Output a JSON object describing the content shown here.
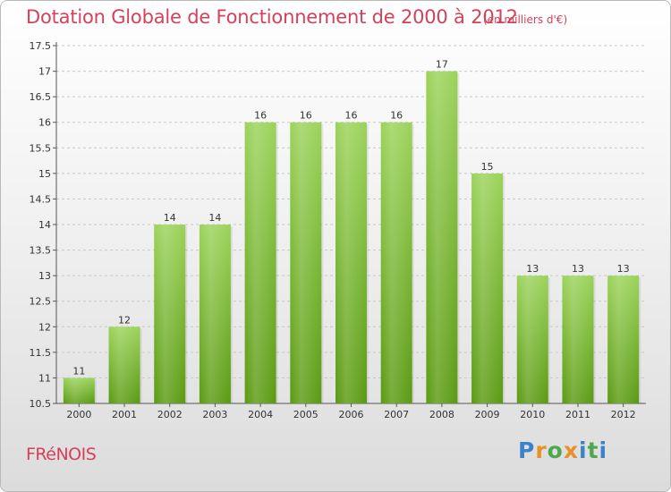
{
  "title": "Dotation Globale de Fonctionnement de 2000 à 2012",
  "unit_label": "(en milliers d'€)",
  "place_name": "FRéNOIS",
  "logo": {
    "letters": [
      "P",
      "r",
      "o",
      "x",
      "i",
      "t",
      "i"
    ],
    "colors": [
      "#3a83c8",
      "#e8902a",
      "#4ea84e",
      "#e8902a",
      "#3a83c8",
      "#4ea84e",
      "#3a83c8"
    ]
  },
  "colors": {
    "accent": "#d6415a",
    "bar_top": "#9bd35a",
    "bar_bottom": "#5a9a12",
    "grid": "#c8c8c8"
  },
  "chart_data": {
    "type": "bar",
    "categories": [
      "2000",
      "2001",
      "2002",
      "2003",
      "2004",
      "2005",
      "2006",
      "2007",
      "2008",
      "2009",
      "2010",
      "2011",
      "2012"
    ],
    "values": [
      11,
      12,
      14,
      14,
      16,
      16,
      16,
      16,
      17,
      15,
      13,
      13,
      13
    ],
    "data_labels": [
      "11",
      "12",
      "14",
      "14",
      "16",
      "16",
      "16",
      "16",
      "17",
      "15",
      "13",
      "13",
      "13"
    ],
    "y_ticks": [
      10.5,
      11,
      11.5,
      12,
      12.5,
      13,
      13.5,
      14,
      14.5,
      15,
      15.5,
      16,
      16.5,
      17,
      17.5
    ],
    "y_tick_labels": [
      "10.5",
      "11",
      "11.5",
      "12",
      "12.5",
      "13",
      "13.5",
      "14",
      "14.5",
      "15",
      "15.5",
      "16",
      "16.5",
      "17",
      "17.5"
    ],
    "ylim": [
      10.5,
      17.5
    ],
    "grid": true
  }
}
